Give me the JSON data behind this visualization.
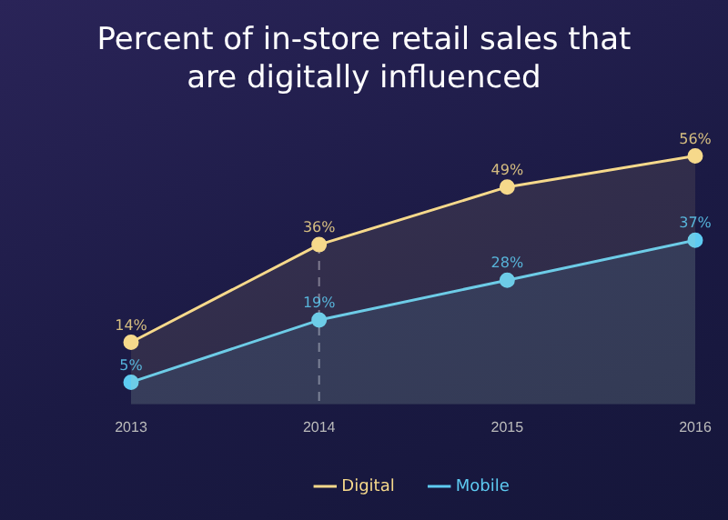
{
  "chart_data": {
    "type": "area",
    "title": "Percent of in-store retail sales that are digitally influenced",
    "categories": [
      "2013",
      "2014",
      "2015",
      "2016"
    ],
    "series": [
      {
        "name": "Digital",
        "color": "#f6d98b",
        "values": [
          14,
          36,
          49,
          56
        ],
        "value_labels": [
          "14%",
          "36%",
          "49%",
          "56%"
        ]
      },
      {
        "name": "Mobile",
        "color": "#5ecbf2",
        "values": [
          5,
          19,
          28,
          37
        ],
        "value_labels": [
          "5%",
          "19%",
          "28%",
          "37%"
        ]
      }
    ],
    "tick_labels": "x",
    "marker": "circle",
    "legend": "bottom",
    "grid": false,
    "ref_lines": [
      {
        "axis": "x",
        "value": "2014",
        "line_style": "dashed"
      }
    ]
  }
}
